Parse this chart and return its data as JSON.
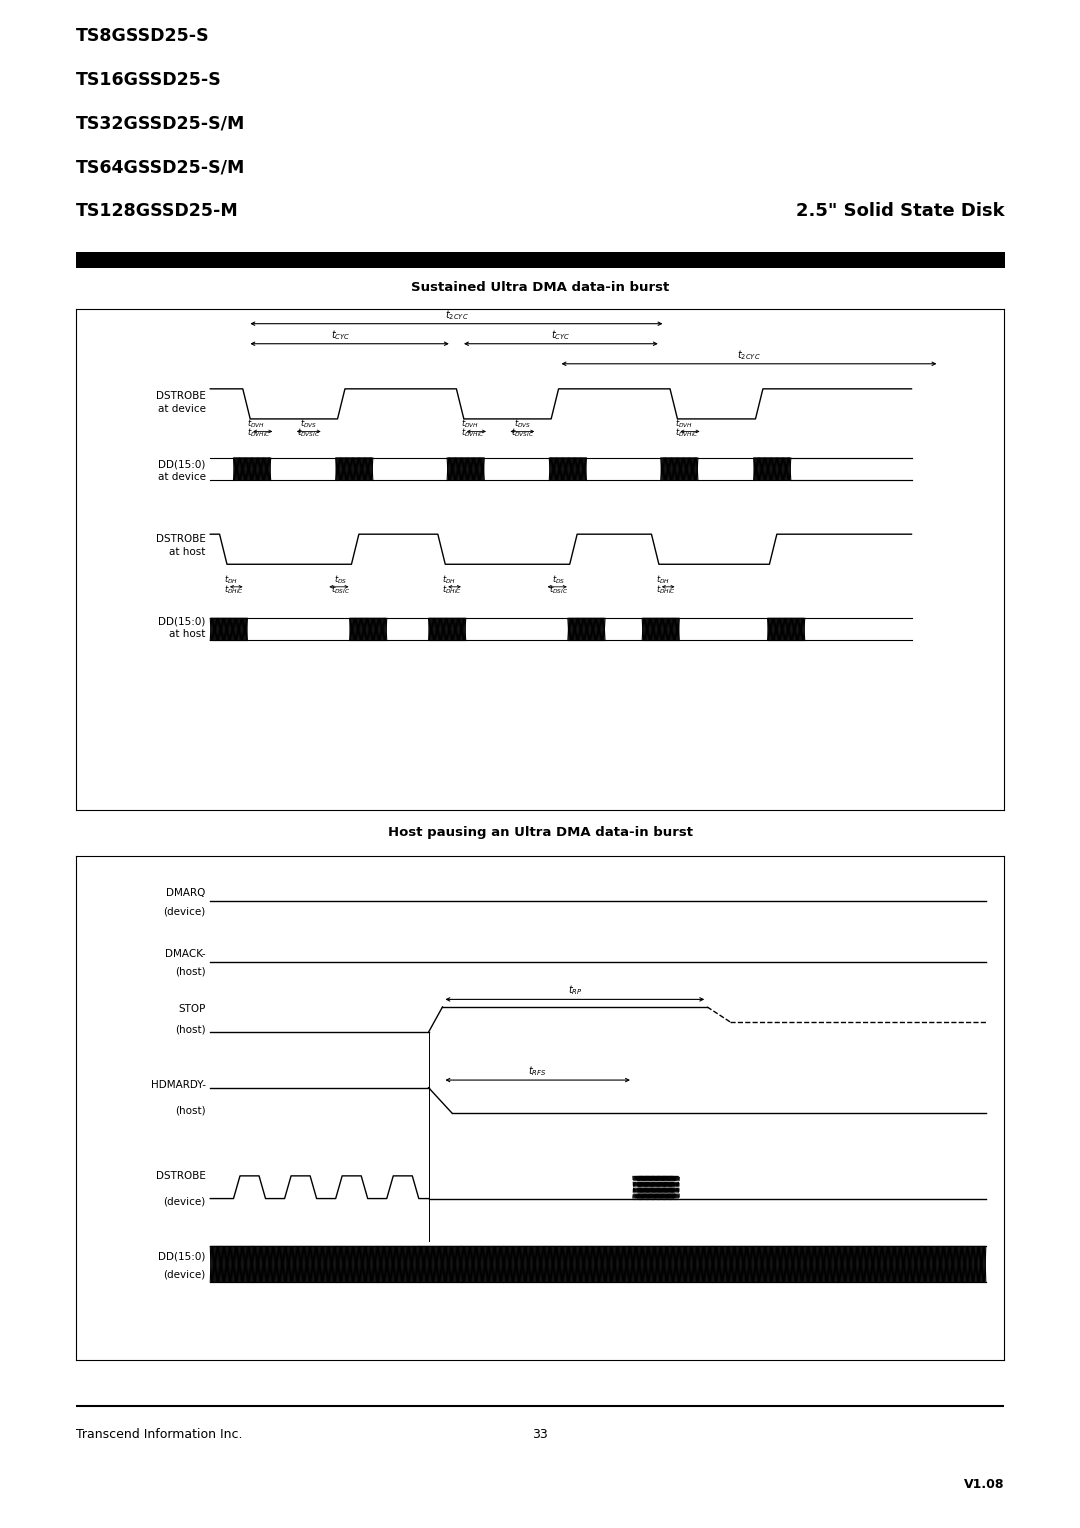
{
  "page_width": 10.8,
  "page_height": 15.28,
  "bg_color": "#ffffff",
  "header_models": [
    "TS8GSSD25-S",
    "TS16GSSD25-S",
    "TS32GSSD25-S/M",
    "TS64GSSD25-S/M",
    "TS128GSSD25-M"
  ],
  "header_right": "2.5\" Solid State Disk",
  "footer_left": "Transcend Information Inc.",
  "footer_center": "33",
  "footer_right": "V1.08",
  "diagram1_title": "Sustained Ultra DMA data-in burst",
  "diagram2_title": "Host pausing an Ultra DMA data-in burst"
}
